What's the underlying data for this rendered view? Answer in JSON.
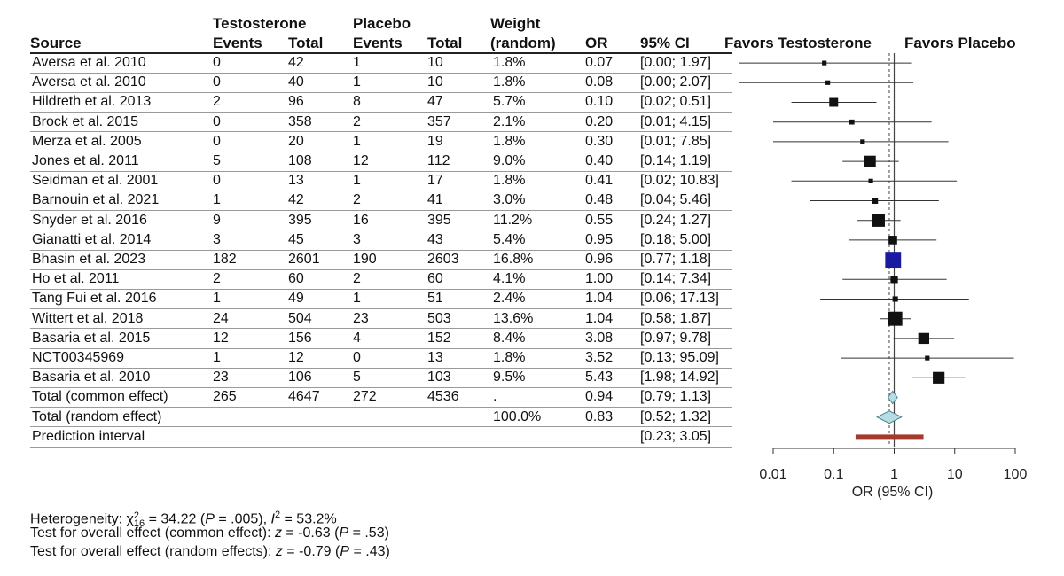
{
  "headers": {
    "group_testosterone": "Testosterone",
    "group_placebo": "Placebo",
    "weight_top": "Weight",
    "source": "Source",
    "t_events": "Events",
    "t_total": "Total",
    "p_events": "Events",
    "p_total": "Total",
    "weight_bottom": "(random)",
    "or": "OR",
    "ci": "95% CI",
    "favors_left": "Favors Testosterone",
    "favors_right": "Favors Placebo"
  },
  "rows": [
    {
      "source": "Aversa et al. 2010",
      "t_events": "0",
      "t_total": "42",
      "p_events": "1",
      "p_total": "10",
      "weight": "1.8%",
      "or": "0.07",
      "ci": "[0.00; 1.97]"
    },
    {
      "source": "Aversa et al. 2010",
      "t_events": "0",
      "t_total": "40",
      "p_events": "1",
      "p_total": "10",
      "weight": "1.8%",
      "or": "0.08",
      "ci": "[0.00; 2.07]"
    },
    {
      "source": "Hildreth et al. 2013",
      "t_events": "2",
      "t_total": "96",
      "p_events": "8",
      "p_total": "47",
      "weight": "5.7%",
      "or": "0.10",
      "ci": "[0.02; 0.51]"
    },
    {
      "source": "Brock et al. 2015",
      "t_events": "0",
      "t_total": "358",
      "p_events": "2",
      "p_total": "357",
      "weight": "2.1%",
      "or": "0.20",
      "ci": "[0.01; 4.15]"
    },
    {
      "source": "Merza et al. 2005",
      "t_events": "0",
      "t_total": "20",
      "p_events": "1",
      "p_total": "19",
      "weight": "1.8%",
      "or": "0.30",
      "ci": "[0.01; 7.85]"
    },
    {
      "source": "Jones et al. 2011",
      "t_events": "5",
      "t_total": "108",
      "p_events": "12",
      "p_total": "112",
      "weight": "9.0%",
      "or": "0.40",
      "ci": "[0.14; 1.19]"
    },
    {
      "source": "Seidman et al. 2001",
      "t_events": "0",
      "t_total": "13",
      "p_events": "1",
      "p_total": "17",
      "weight": "1.8%",
      "or": "0.41",
      "ci": "[0.02; 10.83]"
    },
    {
      "source": "Barnouin et al. 2021",
      "t_events": "1",
      "t_total": "42",
      "p_events": "2",
      "p_total": "41",
      "weight": "3.0%",
      "or": "0.48",
      "ci": "[0.04; 5.46]"
    },
    {
      "source": "Snyder et al. 2016",
      "t_events": "9",
      "t_total": "395",
      "p_events": "16",
      "p_total": "395",
      "weight": "11.2%",
      "or": "0.55",
      "ci": "[0.24; 1.27]"
    },
    {
      "source": "Gianatti et al. 2014",
      "t_events": "3",
      "t_total": "45",
      "p_events": "3",
      "p_total": "43",
      "weight": "5.4%",
      "or": "0.95",
      "ci": "[0.18; 5.00]"
    },
    {
      "source": "Bhasin et al. 2023",
      "t_events": "182",
      "t_total": "2601",
      "p_events": "190",
      "p_total": "2603",
      "weight": "16.8%",
      "or": "0.96",
      "ci": "[0.77; 1.18]"
    },
    {
      "source": "Ho et al. 2011",
      "t_events": "2",
      "t_total": "60",
      "p_events": "2",
      "p_total": "60",
      "weight": "4.1%",
      "or": "1.00",
      "ci": "[0.14; 7.34]"
    },
    {
      "source": "Tang Fui et al. 2016",
      "t_events": "1",
      "t_total": "49",
      "p_events": "1",
      "p_total": "51",
      "weight": "2.4%",
      "or": "1.04",
      "ci": "[0.06; 17.13]"
    },
    {
      "source": "Wittert et al. 2018",
      "t_events": "24",
      "t_total": "504",
      "p_events": "23",
      "p_total": "503",
      "weight": "13.6%",
      "or": "1.04",
      "ci": "[0.58; 1.87]"
    },
    {
      "source": "Basaria et al. 2015",
      "t_events": "12",
      "t_total": "156",
      "p_events": "4",
      "p_total": "152",
      "weight": "8.4%",
      "or": "3.08",
      "ci": "[0.97; 9.78]"
    },
    {
      "source": "NCT00345969",
      "t_events": "1",
      "t_total": "12",
      "p_events": "0",
      "p_total": "13",
      "weight": "1.8%",
      "or": "3.52",
      "ci": "[0.13; 95.09]"
    },
    {
      "source": "Basaria et al. 2010",
      "t_events": "23",
      "t_total": "106",
      "p_events": "5",
      "p_total": "103",
      "weight": "9.5%",
      "or": "5.43",
      "ci": "[1.98; 14.92]"
    },
    {
      "source": "Total (common effect)",
      "t_events": "265",
      "t_total": "4647",
      "p_events": "272",
      "p_total": "4536",
      "weight": ".",
      "or": "0.94",
      "ci": "[0.79; 1.13]"
    },
    {
      "source": "Total (random effect)",
      "t_events": "",
      "t_total": "",
      "p_events": "",
      "p_total": "",
      "weight": "100.0%",
      "or": "0.83",
      "ci": "[0.52; 1.32]"
    },
    {
      "source": "Prediction interval",
      "t_events": "",
      "t_total": "",
      "p_events": "",
      "p_total": "",
      "weight": "",
      "or": "",
      "ci": "[0.23; 3.05]"
    }
  ],
  "footer": {
    "heterogeneity_prefix": "Heterogeneity: ",
    "chi_symbol": "χ",
    "chi_sub": "16",
    "chi_sup": "2",
    "heterogeneity_mid": " = 34.22 (",
    "p_symbol": "P",
    "heterogeneity_p1": " = .005), ",
    "i_symbol": "I",
    "i_sup": "2",
    "heterogeneity_end": " = 53.2%",
    "common_prefix": "Test for overall effect (common effect): ",
    "z_symbol": "z",
    "common_z": " = -0.63 (",
    "common_p": " = .53)",
    "random_prefix": "Test for overall effect (random effects): ",
    "random_z": " = -0.79 (",
    "random_p": " = .43)"
  },
  "chart_data": {
    "type": "forest",
    "xscale": "log",
    "xlim": [
      0.01,
      100
    ],
    "xticks": [
      0.01,
      0.1,
      1,
      10,
      100
    ],
    "xtick_labels": [
      "0.01",
      "0.1",
      "1",
      "10",
      "100"
    ],
    "xlabel": "OR (95% CI)",
    "reference_line": 1,
    "random_effect_line": 0.83,
    "studies": [
      {
        "or": 0.07,
        "lo": 0.0,
        "hi": 1.97,
        "weight": 1.8
      },
      {
        "or": 0.08,
        "lo": 0.0,
        "hi": 2.07,
        "weight": 1.8
      },
      {
        "or": 0.1,
        "lo": 0.02,
        "hi": 0.51,
        "weight": 5.7
      },
      {
        "or": 0.2,
        "lo": 0.01,
        "hi": 4.15,
        "weight": 2.1
      },
      {
        "or": 0.3,
        "lo": 0.01,
        "hi": 7.85,
        "weight": 1.8
      },
      {
        "or": 0.4,
        "lo": 0.14,
        "hi": 1.19,
        "weight": 9.0
      },
      {
        "or": 0.41,
        "lo": 0.02,
        "hi": 10.83,
        "weight": 1.8
      },
      {
        "or": 0.48,
        "lo": 0.04,
        "hi": 5.46,
        "weight": 3.0
      },
      {
        "or": 0.55,
        "lo": 0.24,
        "hi": 1.27,
        "weight": 11.2
      },
      {
        "or": 0.95,
        "lo": 0.18,
        "hi": 5.0,
        "weight": 5.4
      },
      {
        "or": 0.96,
        "lo": 0.77,
        "hi": 1.18,
        "weight": 16.8
      },
      {
        "or": 1.0,
        "lo": 0.14,
        "hi": 7.34,
        "weight": 4.1
      },
      {
        "or": 1.04,
        "lo": 0.06,
        "hi": 17.13,
        "weight": 2.4
      },
      {
        "or": 1.04,
        "lo": 0.58,
        "hi": 1.87,
        "weight": 13.6
      },
      {
        "or": 3.08,
        "lo": 0.97,
        "hi": 9.78,
        "weight": 8.4
      },
      {
        "or": 3.52,
        "lo": 0.13,
        "hi": 95.09,
        "weight": 1.8
      },
      {
        "or": 5.43,
        "lo": 1.98,
        "hi": 14.92,
        "weight": 9.5
      }
    ],
    "common_effect": {
      "or": 0.94,
      "lo": 0.79,
      "hi": 1.13
    },
    "random_effect": {
      "or": 0.83,
      "lo": 0.52,
      "hi": 1.32
    },
    "prediction_interval": {
      "lo": 0.23,
      "hi": 3.05
    },
    "colors": {
      "square": "#1a1aa0",
      "diamond": "#b7dde4",
      "diamond_stroke": "#4a7f8e",
      "prediction": "#a33a2b",
      "line": "#333333"
    }
  }
}
